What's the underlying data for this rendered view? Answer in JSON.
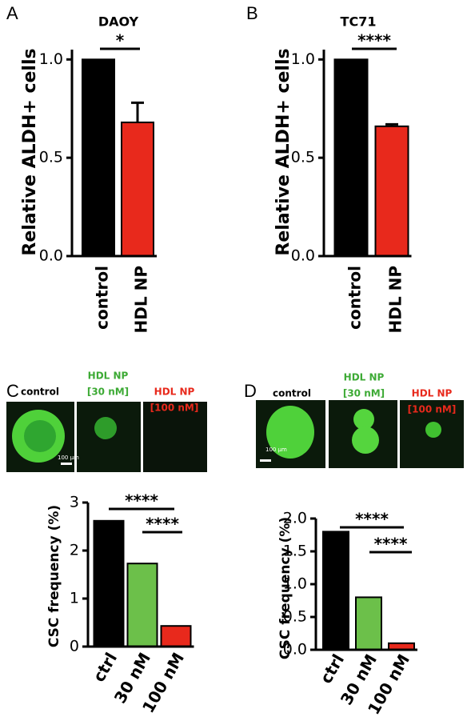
{
  "chart_data": [
    {
      "type": "bar",
      "panel_label": "A",
      "title": "DAOY",
      "y_label": "Relative ALDH+ cells",
      "categories": [
        "control",
        "HDL NP"
      ],
      "values": [
        1.0,
        0.68
      ],
      "errors": [
        null,
        0.1
      ],
      "colors": [
        "#000000",
        "#e8291c"
      ],
      "ylim": [
        0,
        1.05
      ],
      "yticks": [
        {
          "value": 0,
          "label": "0.0"
        },
        {
          "value": 0.5,
          "label": "0.5"
        },
        {
          "value": 1,
          "label": "1.0"
        }
      ],
      "annotations": [
        "*"
      ]
    },
    {
      "type": "bar",
      "panel_label": "B",
      "title": "TC71",
      "y_label": "Relative ALDH+ cells",
      "categories": [
        "control",
        "HDL NP"
      ],
      "values": [
        1.0,
        0.66
      ],
      "errors": [
        null,
        0.01
      ],
      "colors": [
        "#000000",
        "#e8291c"
      ],
      "ylim": [
        0,
        1.05
      ],
      "yticks": [
        {
          "value": 0,
          "label": "0.0"
        },
        {
          "value": 0.5,
          "label": "0.5"
        },
        {
          "value": 1,
          "label": "1.0"
        }
      ],
      "annotations": [
        "****"
      ]
    },
    {
      "type": "bar",
      "panel_label": "C",
      "y_label": "CSC frequency (%)",
      "image_labels": [
        [
          "control"
        ],
        [
          "HDL NP",
          "[30 nM]"
        ],
        [
          "HDL NP",
          "[100 nM]"
        ]
      ],
      "scale_bar": "100 µm",
      "categories": [
        "ctrl",
        "30 nM",
        "100 nM"
      ],
      "values": [
        2.62,
        1.73,
        0.43
      ],
      "colors": [
        "#000000",
        "#6cc04a",
        "#e8291c"
      ],
      "ylim": [
        0,
        3
      ],
      "yticks": [
        0,
        1,
        2,
        3
      ],
      "annotations": [
        "****",
        "****"
      ]
    },
    {
      "type": "bar",
      "panel_label": "D",
      "y_label": "CSC frequency (%)",
      "image_labels": [
        [
          "control"
        ],
        [
          "HDL NP",
          "[30 nM]"
        ],
        [
          "HDL NP",
          "[100 nM]"
        ]
      ],
      "scale_bar": "100 µm",
      "categories": [
        "ctrl",
        "30 nM",
        "100 nM"
      ],
      "values": [
        1.8,
        0.8,
        0.1
      ],
      "colors": [
        "#000000",
        "#6cc04a",
        "#e8291c"
      ],
      "ylim": [
        0,
        2.0
      ],
      "yticks": [
        {
          "value": 0,
          "label": "0.0"
        },
        {
          "value": 0.5,
          "label": "0.5"
        },
        {
          "value": 1,
          "label": "1.0"
        },
        {
          "value": 1.5,
          "label": "1.5"
        },
        {
          "value": 2,
          "label": "2.0"
        }
      ],
      "annotations": [
        "****",
        "****"
      ]
    }
  ]
}
